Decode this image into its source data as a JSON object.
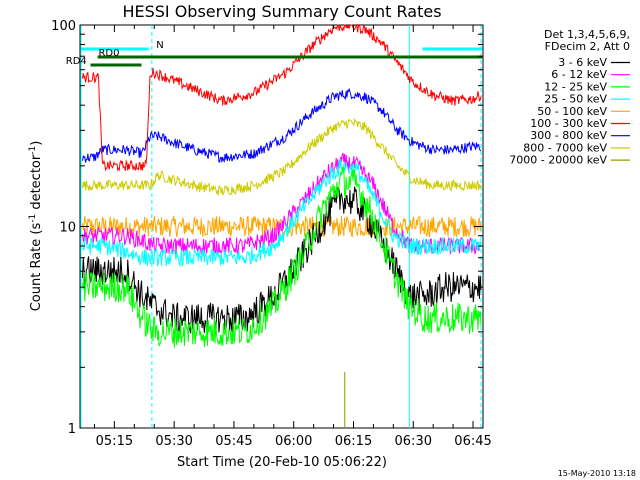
{
  "chart_data": {
    "type": "line",
    "title": "HESSI Observing Summary Count Rates",
    "xlabel": "Start Time (20-Feb-10 05:06:22)",
    "ylabel_prefix": "Count Rate (s",
    "ylabel_sup": "-1",
    "ylabel_suffix": " detector",
    "ylabel_close": ")",
    "scale_y": "log",
    "ylim": [
      1,
      100
    ],
    "xlim_min": [
      6.37,
      107.5
    ],
    "grid": false,
    "x_ticks": [
      {
        "t": 15,
        "label": "05:15"
      },
      {
        "t": 30,
        "label": "05:30"
      },
      {
        "t": 45,
        "label": "05:45"
      },
      {
        "t": 60,
        "label": "06:00"
      },
      {
        "t": 75,
        "label": "06:15"
      },
      {
        "t": 90,
        "label": "06:30"
      },
      {
        "t": 105,
        "label": "06:45"
      }
    ],
    "y_ticks": [
      {
        "v": 1,
        "label": "1"
      },
      {
        "v": 10,
        "label": "10"
      },
      {
        "v": 100,
        "label": "100"
      }
    ],
    "legend_header": [
      "Det 1,3,4,5,6,9,",
      "FDecim 2, Att 0"
    ],
    "legend_position": "right",
    "series": [
      {
        "name": "3 - 6 keV",
        "color": "#000000",
        "x": [
          7,
          12,
          18,
          22,
          25,
          30,
          40,
          48,
          55,
          62,
          68,
          72,
          76,
          80,
          85,
          89,
          93,
          98,
          103,
          107
        ],
        "y": [
          6,
          6,
          6,
          4.5,
          4,
          3.5,
          3.5,
          3.5,
          4.5,
          7,
          11,
          14,
          13,
          10,
          6.5,
          4.5,
          4.5,
          5,
          5,
          5
        ]
      },
      {
        "name": "6 - 12 keV",
        "color": "#ff00ff",
        "x": [
          7,
          12,
          18,
          22,
          25,
          30,
          40,
          48,
          55,
          62,
          68,
          72,
          76,
          80,
          85,
          89,
          93,
          98,
          103,
          107
        ],
        "y": [
          9,
          9,
          9,
          8.5,
          8,
          8,
          8,
          8,
          9,
          13,
          18,
          21,
          20,
          16,
          10,
          8,
          8,
          8,
          8,
          8
        ]
      },
      {
        "name": "12 - 25 keV",
        "color": "#00ff00",
        "x": [
          7,
          12,
          18,
          22,
          25,
          30,
          40,
          48,
          55,
          62,
          68,
          72,
          76,
          80,
          85,
          89,
          93,
          98,
          103,
          107
        ],
        "y": [
          5,
          5,
          5,
          3.5,
          3,
          3,
          3,
          3,
          4,
          7,
          13,
          17,
          16,
          11,
          6,
          4,
          3.5,
          3.5,
          3.5,
          3.5
        ]
      },
      {
        "name": "25 - 50 keV",
        "color": "#00ffff",
        "x": [
          7,
          12,
          18,
          22,
          25,
          30,
          40,
          48,
          55,
          62,
          68,
          72,
          76,
          80,
          85,
          89,
          93,
          98,
          103,
          107
        ],
        "y": [
          8,
          8,
          7.5,
          7,
          7,
          7,
          7,
          7,
          8,
          12,
          17,
          20,
          19,
          14,
          9,
          8,
          8,
          8,
          8,
          8
        ]
      },
      {
        "name": "50 - 100 keV",
        "color": "#ffa500",
        "x": [
          7,
          12,
          18,
          22,
          25,
          30,
          40,
          48,
          55,
          62,
          68,
          72,
          76,
          80,
          85,
          89,
          93,
          98,
          103,
          107
        ],
        "y": [
          10,
          10,
          10,
          10,
          10,
          10,
          10,
          10,
          10,
          10,
          10,
          10,
          10,
          10,
          10,
          10,
          10,
          10,
          10,
          10
        ]
      },
      {
        "name": "100 - 300 keV",
        "color": "#ff0000",
        "x": [
          7,
          9,
          11,
          12,
          15,
          20,
          23,
          24,
          25,
          28,
          35,
          42,
          50,
          58,
          65,
          70,
          74,
          78,
          82,
          86,
          90,
          95,
          100,
          105,
          107
        ],
        "y": [
          55,
          55,
          55,
          20,
          20,
          20,
          20,
          58,
          58,
          55,
          48,
          42,
          46,
          58,
          80,
          97,
          100,
          95,
          82,
          65,
          52,
          45,
          42,
          43,
          45
        ]
      },
      {
        "name": "300 - 800 keV",
        "color": "#0000ff",
        "x": [
          7,
          10,
          12,
          18,
          22,
          24,
          26,
          30,
          35,
          42,
          50,
          58,
          64,
          70,
          74,
          78,
          82,
          86,
          90,
          95,
          100,
          105,
          107
        ],
        "y": [
          22,
          22,
          24,
          24,
          23,
          28,
          28,
          26,
          24,
          22,
          23,
          28,
          36,
          44,
          46,
          44,
          38,
          30,
          26,
          24,
          24,
          25,
          25
        ]
      },
      {
        "name": "800 - 7000 keV",
        "color": "#cccc00",
        "x": [
          7,
          12,
          18,
          24,
          26,
          30,
          35,
          42,
          50,
          58,
          64,
          70,
          74,
          78,
          82,
          86,
          90,
          95,
          100,
          105,
          107
        ],
        "y": [
          16,
          16,
          16,
          16,
          18,
          17,
          16,
          15,
          16,
          19,
          25,
          31,
          33,
          31,
          25,
          20,
          17,
          16,
          16,
          16,
          16
        ]
      },
      {
        "name": "7000 - 20000 keV",
        "color": "#999900",
        "x": [
          72.8,
          72.8,
          72.9,
          72.9
        ],
        "y": [
          1,
          1.9,
          1.9,
          1
        ]
      }
    ],
    "attenuator_segments": [
      {
        "color": "#00ffff",
        "y": 98.0,
        "x0": 6.5,
        "x1": 23.6,
        "label": "N",
        "label_x": 25.5
      },
      {
        "color": "#00ffff",
        "y": 98.0,
        "x0": 92.3,
        "x1": 107.3,
        "label": "",
        "label_x": 0
      },
      {
        "color": "#006400",
        "y": 96.0,
        "x0": 10.8,
        "x1": 107.3,
        "label": "RD0",
        "label_x": 11.0
      },
      {
        "color": "#006400",
        "y": 94.0,
        "x0": 9.0,
        "x1": 21.8,
        "label": "RD4",
        "label_x": 2.8
      }
    ],
    "vertical_markers": [
      {
        "t": 6.6,
        "style": "solid",
        "color": "#00ffff"
      },
      {
        "t": 24.4,
        "style": "dashed",
        "color": "#00ffff"
      },
      {
        "t": 89.0,
        "style": "solid",
        "color": "#00ffff"
      },
      {
        "t": 107.0,
        "style": "dashed",
        "color": "#00ffff"
      }
    ]
  },
  "footer_date": "15-May-2010 13:18"
}
